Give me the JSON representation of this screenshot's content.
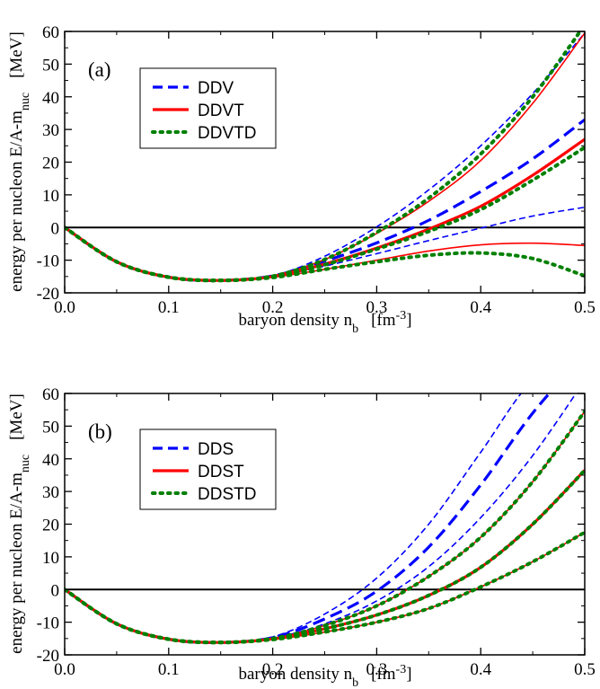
{
  "chart_data": [
    {
      "type": "line",
      "panel_label": "(a)",
      "xlabel": {
        "main": "baryon density  n",
        "sub": "b",
        "unit_pre": "[fm",
        "unit_sup": "-3",
        "unit_post": "]"
      },
      "ylabel": {
        "main": "energy per nucleon  E/A-m",
        "sub": "nuc",
        "unit": "[MeV]"
      },
      "xlim": [
        0,
        0.5
      ],
      "ylim": [
        -20,
        60
      ],
      "xticks": [
        "0.0",
        "0.1",
        "0.2",
        "0.3",
        "0.4",
        "0.5"
      ],
      "yticks": [
        "-20",
        "-10",
        "0",
        "10",
        "20",
        "30",
        "40",
        "50",
        "60"
      ],
      "zero_line": true,
      "legend": {
        "position": "top-left",
        "entries": [
          {
            "label": "DDV",
            "color": "#0000ff",
            "style": "dashed"
          },
          {
            "label": "DDVT",
            "color": "#ff0000",
            "style": "solid"
          },
          {
            "label": "DDVTD",
            "color": "#008000",
            "style": "dotted"
          }
        ]
      },
      "x": [
        0,
        0.05,
        0.1,
        0.15,
        0.2,
        0.25,
        0.3,
        0.35,
        0.4,
        0.45,
        0.5
      ],
      "series": [
        {
          "color": "#0000ff",
          "style": "dashed",
          "weight": "thin",
          "values": [
            0,
            -10.5,
            -15.2,
            -16.2,
            -14.8,
            -8.8,
            0.2,
            11.5,
            25.0,
            41.0,
            59.5
          ]
        },
        {
          "color": "#0000ff",
          "style": "dashed",
          "weight": "thick",
          "values": [
            0,
            -10.5,
            -15.2,
            -16.2,
            -14.8,
            -10.3,
            -4.7,
            2.2,
            11.0,
            21.0,
            33.0
          ]
        },
        {
          "color": "#0000ff",
          "style": "dashed",
          "weight": "thin",
          "values": [
            0,
            -10.5,
            -15.2,
            -16.2,
            -15.0,
            -11.8,
            -8.0,
            -4.0,
            -0.2,
            3.5,
            6.2
          ]
        },
        {
          "color": "#ff0000",
          "style": "solid",
          "weight": "thin",
          "values": [
            0,
            -10.5,
            -15.2,
            -16.2,
            -14.8,
            -9.8,
            -1.8,
            8.0,
            20.5,
            38.0,
            59.5
          ]
        },
        {
          "color": "#ff0000",
          "style": "solid",
          "weight": "thick",
          "values": [
            0,
            -10.5,
            -15.2,
            -16.2,
            -15.0,
            -11.2,
            -6.3,
            -0.5,
            6.5,
            16.0,
            27.0
          ]
        },
        {
          "color": "#ff0000",
          "style": "solid",
          "weight": "thin",
          "values": [
            0,
            -10.5,
            -15.2,
            -16.2,
            -15.2,
            -12.8,
            -10.0,
            -7.2,
            -5.3,
            -4.8,
            -5.5
          ]
        },
        {
          "color": "#008000",
          "style": "dotted",
          "weight": "thick",
          "values": [
            0,
            -10.5,
            -15.2,
            -16.2,
            -14.9,
            -9.8,
            -1.5,
            9.0,
            22.5,
            40.0,
            62.0
          ]
        },
        {
          "color": "#008000",
          "style": "dotted",
          "weight": "thick",
          "values": [
            0,
            -10.5,
            -15.2,
            -16.2,
            -15.0,
            -11.4,
            -6.6,
            -1.2,
            5.5,
            14.5,
            24.5
          ]
        },
        {
          "color": "#008000",
          "style": "dotted",
          "weight": "thick",
          "values": [
            0,
            -10.5,
            -15.2,
            -16.2,
            -15.3,
            -12.8,
            -10.5,
            -8.5,
            -7.8,
            -9.5,
            -14.8
          ]
        }
      ]
    },
    {
      "type": "line",
      "panel_label": "(b)",
      "xlabel": {
        "main": "baryon density  n",
        "sub": "b",
        "unit_pre": "[fm",
        "unit_sup": "-3",
        "unit_post": "]"
      },
      "ylabel": {
        "main": "energy per nucleon  E/A-m",
        "sub": "nuc",
        "unit": "[MeV]"
      },
      "xlim": [
        0,
        0.5
      ],
      "ylim": [
        -20,
        60
      ],
      "xticks": [
        "0.0",
        "0.1",
        "0.2",
        "0.3",
        "0.4",
        "0.5"
      ],
      "yticks": [
        "-20",
        "-10",
        "0",
        "10",
        "20",
        "30",
        "40",
        "50",
        "60"
      ],
      "zero_line": true,
      "legend": {
        "position": "top-left",
        "entries": [
          {
            "label": "DDS",
            "color": "#0000ff",
            "style": "dashed"
          },
          {
            "label": "DDST",
            "color": "#ff0000",
            "style": "solid"
          },
          {
            "label": "DDSTD",
            "color": "#008000",
            "style": "dotted"
          }
        ]
      },
      "x": [
        0,
        0.05,
        0.1,
        0.15,
        0.2,
        0.25,
        0.3,
        0.35,
        0.4,
        0.45,
        0.5
      ],
      "series": [
        {
          "color": "#0000ff",
          "style": "dashed",
          "weight": "thin",
          "values": [
            0,
            -10.5,
            -15.2,
            -16.2,
            -14.5,
            -7.5,
            3.5,
            20.0,
            42.0,
            64.0,
            72.0
          ]
        },
        {
          "color": "#0000ff",
          "style": "dashed",
          "weight": "thick",
          "values": [
            0,
            -10.5,
            -15.2,
            -16.2,
            -14.7,
            -9.0,
            -0.5,
            13.0,
            32.0,
            54.0,
            72.0
          ]
        },
        {
          "color": "#0000ff",
          "style": "dashed",
          "weight": "thin",
          "values": [
            0,
            -10.5,
            -15.2,
            -16.2,
            -14.9,
            -10.5,
            -3.5,
            7.0,
            22.0,
            41.0,
            64.0
          ]
        },
        {
          "color": "#ff0000",
          "style": "solid",
          "weight": "thin",
          "values": [
            0,
            -10.5,
            -15.2,
            -16.2,
            -15.0,
            -11.0,
            -5.0,
            4.0,
            16.0,
            33.0,
            54.5
          ]
        },
        {
          "color": "#ff0000",
          "style": "solid",
          "weight": "thick",
          "values": [
            0,
            -10.5,
            -15.2,
            -16.2,
            -15.1,
            -12.0,
            -7.8,
            -1.8,
            6.8,
            20.0,
            36.5
          ]
        },
        {
          "color": "#ff0000",
          "style": "solid",
          "weight": "thin",
          "values": [
            0,
            -10.5,
            -15.2,
            -16.2,
            -15.3,
            -13.0,
            -10.0,
            -5.8,
            0.8,
            8.5,
            17.5
          ]
        },
        {
          "color": "#008000",
          "style": "dotted",
          "weight": "thick",
          "values": [
            0,
            -10.5,
            -15.2,
            -16.2,
            -15.0,
            -11.0,
            -5.0,
            4.0,
            16.0,
            33.0,
            54.5
          ]
        },
        {
          "color": "#008000",
          "style": "dotted",
          "weight": "thick",
          "values": [
            0,
            -10.5,
            -15.2,
            -16.2,
            -15.1,
            -12.0,
            -7.8,
            -1.8,
            6.8,
            20.0,
            36.5
          ]
        },
        {
          "color": "#008000",
          "style": "dotted",
          "weight": "thick",
          "values": [
            0,
            -10.5,
            -15.2,
            -16.2,
            -15.3,
            -13.0,
            -10.0,
            -5.8,
            0.8,
            8.5,
            17.5
          ]
        }
      ]
    }
  ]
}
